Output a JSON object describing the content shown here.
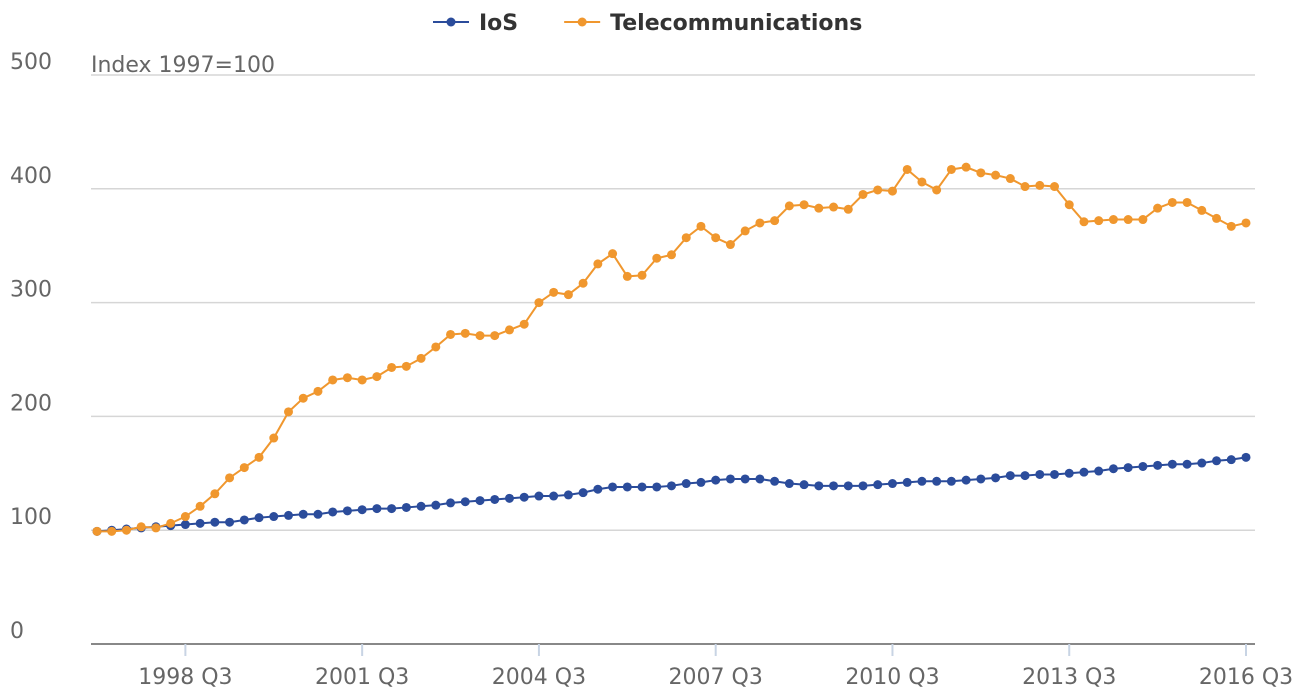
{
  "chart_data": {
    "type": "line",
    "annotation": "Index 1997=100",
    "categories": [
      null,
      null,
      null,
      null,
      null,
      null,
      "1998 Q3",
      null,
      null,
      null,
      null,
      null,
      null,
      null,
      null,
      null,
      null,
      null,
      "2001 Q3",
      null,
      null,
      null,
      null,
      null,
      null,
      null,
      null,
      null,
      null,
      null,
      "2004 Q3",
      null,
      null,
      null,
      null,
      null,
      null,
      null,
      null,
      null,
      null,
      null,
      "2007 Q3",
      null,
      null,
      null,
      null,
      null,
      null,
      null,
      null,
      null,
      null,
      null,
      "2010 Q3",
      null,
      null,
      null,
      null,
      null,
      null,
      null,
      null,
      null,
      null,
      null,
      "2013 Q3",
      null,
      null,
      null,
      null,
      null,
      null,
      null,
      null,
      null,
      null,
      null,
      "2016 Q3"
    ],
    "series": [
      {
        "name": "IoS",
        "color": "#2b4c9b",
        "values": [
          99,
          100,
          101,
          102,
          103,
          104,
          105,
          106,
          107,
          107,
          109,
          111,
          112,
          113,
          114,
          114,
          116,
          117,
          118,
          119,
          119,
          120,
          121,
          122,
          124,
          125,
          126,
          127,
          128,
          129,
          130,
          130,
          131,
          133,
          136,
          138,
          138,
          138,
          138,
          139,
          141,
          142,
          144,
          145,
          145,
          145,
          143,
          141,
          140,
          139,
          139,
          139,
          139,
          140,
          141,
          142,
          143,
          143,
          143,
          144,
          145,
          146,
          148,
          148,
          149,
          149,
          150,
          151,
          152,
          154,
          155,
          156,
          157,
          158,
          158,
          159,
          161,
          162,
          164
        ]
      },
      {
        "name": "Telecommunications",
        "color": "#f0972e",
        "values": [
          99,
          99,
          100,
          103,
          102,
          106,
          112,
          121,
          132,
          146,
          155,
          164,
          181,
          204,
          216,
          222,
          232,
          234,
          232,
          235,
          243,
          244,
          251,
          261,
          272,
          273,
          271,
          271,
          276,
          281,
          300,
          309,
          307,
          317,
          334,
          343,
          323,
          324,
          339,
          342,
          357,
          367,
          357,
          351,
          363,
          370,
          372,
          385,
          386,
          383,
          384,
          382,
          395,
          399,
          398,
          417,
          406,
          399,
          417,
          419,
          414,
          412,
          409,
          402,
          403,
          402,
          386,
          371,
          372,
          373,
          373,
          373,
          383,
          388,
          388,
          381,
          374,
          367,
          370
        ]
      }
    ],
    "ylim": [
      0,
      500
    ],
    "yticks": [
      0,
      100,
      200,
      300,
      400,
      500
    ],
    "grid": true,
    "legend": "top"
  }
}
